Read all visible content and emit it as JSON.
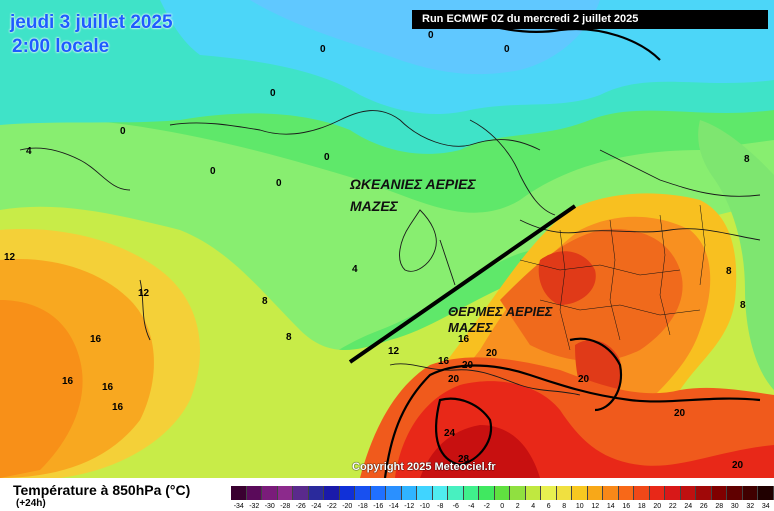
{
  "header": {
    "date": "jeudi 3 juillet 2025",
    "time": "2:00 locale",
    "run": "Run ECMWF 0Z du mercredi 2 juillet 2025"
  },
  "annotations": {
    "oceanic_line1": "ΩΚΕΑΝΙΕΣ ΑΕΡΙΕΣ",
    "oceanic_line2": "ΜΑΖΕΣ",
    "warm_line1": "ΘΕΡΜΕΣ ΑΕΡΙΕΣ",
    "warm_line2": "ΜΑΖΕΣ"
  },
  "isotherm_labels": [
    "0",
    "0",
    "0",
    "0",
    "0",
    "0",
    "0",
    "0",
    "4",
    "4",
    "8",
    "8",
    "8",
    "8",
    "8",
    "12",
    "12",
    "12",
    "16",
    "16",
    "16",
    "16",
    "16",
    "16",
    "20",
    "20",
    "20",
    "20",
    "20",
    "20",
    "24",
    "28"
  ],
  "copyright": "Copyright 2025 Meteociel.fr",
  "legend": {
    "title": "Température à 850hPa (°C)",
    "subtitle": "(+24h)",
    "colors": [
      "#3a0030",
      "#5a0a5a",
      "#7a1c7a",
      "#8c2a8c",
      "#5a2a8c",
      "#2a2a9c",
      "#1a1aaa",
      "#1030d8",
      "#1850f0",
      "#2070ff",
      "#2a90ff",
      "#30b4ff",
      "#40d4ff",
      "#50ecf0",
      "#48f0c0",
      "#40f08c",
      "#40e860",
      "#60e040",
      "#90e040",
      "#c0e840",
      "#e8f050",
      "#f0e040",
      "#f8c820",
      "#f8a818",
      "#f88818",
      "#f86818",
      "#f04818",
      "#e82818",
      "#d81818",
      "#c01010",
      "#a00808",
      "#800000",
      "#600000",
      "#400000",
      "#200000"
    ],
    "ticks": [
      "-34",
      "-32",
      "-30",
      "-28",
      "-26",
      "-24",
      "-22",
      "-20",
      "-18",
      "-16",
      "-14",
      "-12",
      "-10",
      "-8",
      "-6",
      "-4",
      "-2",
      "0",
      "2",
      "4",
      "6",
      "8",
      "10",
      "12",
      "14",
      "16",
      "18",
      "20",
      "22",
      "24",
      "26",
      "28",
      "30",
      "32",
      "34"
    ]
  }
}
